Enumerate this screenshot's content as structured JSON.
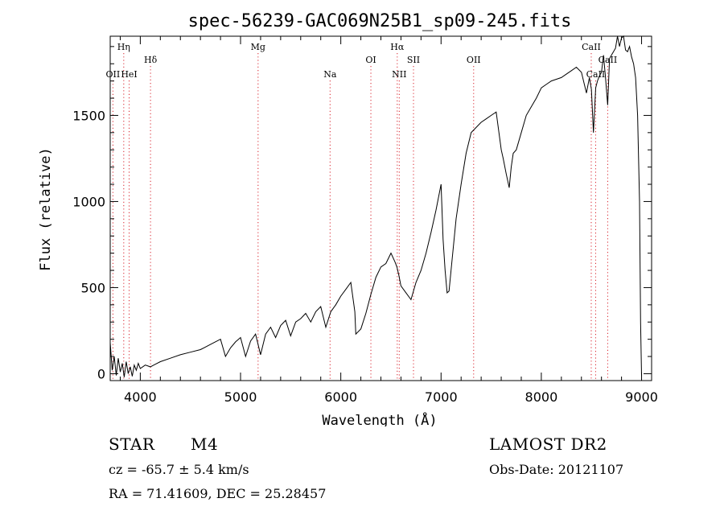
{
  "chart_data": {
    "type": "line",
    "title": "spec-56239-GAC069N25B1_sp09-245.fits",
    "xlabel": "Wavelength (Å)",
    "ylabel": "Flux (relative)",
    "xlim": [
      3700,
      9100
    ],
    "ylim": [
      -40,
      1960
    ],
    "xticks": [
      4000,
      5000,
      6000,
      7000,
      8000,
      9000
    ],
    "yticks": [
      0,
      500,
      1000,
      1500
    ],
    "series": [
      {
        "x": [
          3700,
          3720,
          3740,
          3760,
          3780,
          3800,
          3820,
          3840,
          3860,
          3880,
          3900,
          3920,
          3940,
          3960,
          3980,
          4000,
          4050,
          4100,
          4150,
          4200,
          4300,
          4400,
          4500,
          4600,
          4700,
          4800,
          4850,
          4900,
          4950,
          5000,
          5050,
          5100,
          5150,
          5200,
          5250,
          5300,
          5350,
          5400,
          5450,
          5500,
          5550,
          5600,
          5650,
          5700,
          5750,
          5800,
          5850,
          5900,
          5950,
          6000,
          6050,
          6100,
          6140,
          6150,
          6200,
          6250,
          6300,
          6350,
          6400,
          6450,
          6500,
          6540,
          6560,
          6580,
          6600,
          6650,
          6700,
          6750,
          6800,
          6850,
          6900,
          6950,
          7000,
          7020,
          7040,
          7060,
          7080,
          7100,
          7150,
          7200,
          7250,
          7300,
          7350,
          7400,
          7450,
          7500,
          7550,
          7600,
          7620,
          7650,
          7680,
          7700,
          7720,
          7750,
          7800,
          7850,
          7900,
          7950,
          8000,
          8050,
          8100,
          8150,
          8200,
          8250,
          8300,
          8350,
          8400,
          8450,
          8480,
          8500,
          8520,
          8542,
          8560,
          8580,
          8600,
          8620,
          8640,
          8662,
          8680,
          8700,
          8720,
          8740,
          8760,
          8780,
          8800,
          8820,
          8840,
          8860,
          8880,
          8900,
          8920,
          8940,
          8960,
          8980,
          8990,
          9000
        ],
        "y": [
          180,
          20,
          100,
          -10,
          90,
          10,
          60,
          -20,
          70,
          0,
          40,
          -15,
          50,
          20,
          60,
          30,
          50,
          40,
          55,
          70,
          90,
          110,
          125,
          140,
          170,
          200,
          100,
          150,
          185,
          210,
          100,
          190,
          230,
          110,
          230,
          270,
          210,
          280,
          310,
          220,
          300,
          320,
          350,
          300,
          360,
          390,
          270,
          360,
          400,
          450,
          490,
          530,
          360,
          230,
          260,
          350,
          460,
          560,
          620,
          640,
          700,
          650,
          620,
          570,
          510,
          470,
          430,
          530,
          600,
          700,
          820,
          950,
          1100,
          780,
          600,
          470,
          480,
          600,
          900,
          1100,
          1280,
          1400,
          1430,
          1460,
          1480,
          1500,
          1520,
          1300,
          1250,
          1160,
          1080,
          1200,
          1280,
          1300,
          1400,
          1500,
          1550,
          1600,
          1660,
          1680,
          1700,
          1710,
          1720,
          1740,
          1760,
          1780,
          1750,
          1630,
          1720,
          1650,
          1400,
          1660,
          1700,
          1730,
          1750,
          1850,
          1720,
          1560,
          1830,
          1850,
          1870,
          1890,
          1960,
          1900,
          1950,
          1960,
          1880,
          1870,
          1900,
          1840,
          1800,
          1720,
          1500,
          1000,
          300,
          -10
        ]
      }
    ],
    "emission_lines": [
      {
        "name": "Hη",
        "wavelength": 3835,
        "row": 0
      },
      {
        "name": "OII",
        "wavelength": 3727,
        "row": 2
      },
      {
        "name": "HeI",
        "wavelength": 3889,
        "row": 2
      },
      {
        "name": "Hδ",
        "wavelength": 4102,
        "row": 1
      },
      {
        "name": "Mg",
        "wavelength": 5175,
        "row": 0
      },
      {
        "name": "Na",
        "wavelength": 5893,
        "row": 2
      },
      {
        "name": "OI",
        "wavelength": 6300,
        "row": 1
      },
      {
        "name": "Hα",
        "wavelength": 6563,
        "row": 0
      },
      {
        "name": "NII",
        "wavelength": 6583,
        "row": 2
      },
      {
        "name": "SII",
        "wavelength": 6725,
        "row": 1
      },
      {
        "name": "OII",
        "wavelength": 7325,
        "row": 1
      },
      {
        "name": "CaII",
        "wavelength": 8498,
        "row": 0
      },
      {
        "name": "CaII",
        "wavelength": 8542,
        "row": 2
      },
      {
        "name": "CaII",
        "wavelength": 8662,
        "row": 1
      }
    ],
    "line_color": "#000000",
    "marker_color": "#d8202a",
    "grid": false
  },
  "info": {
    "object_class": "STAR",
    "subclass": "M4",
    "survey": "LAMOST DR2",
    "redshift": "cz = -65.7 ± 5.4 km/s",
    "obs_date": "Obs-Date: 20121107",
    "coords": "RA =  71.41609, DEC =  25.28457"
  }
}
